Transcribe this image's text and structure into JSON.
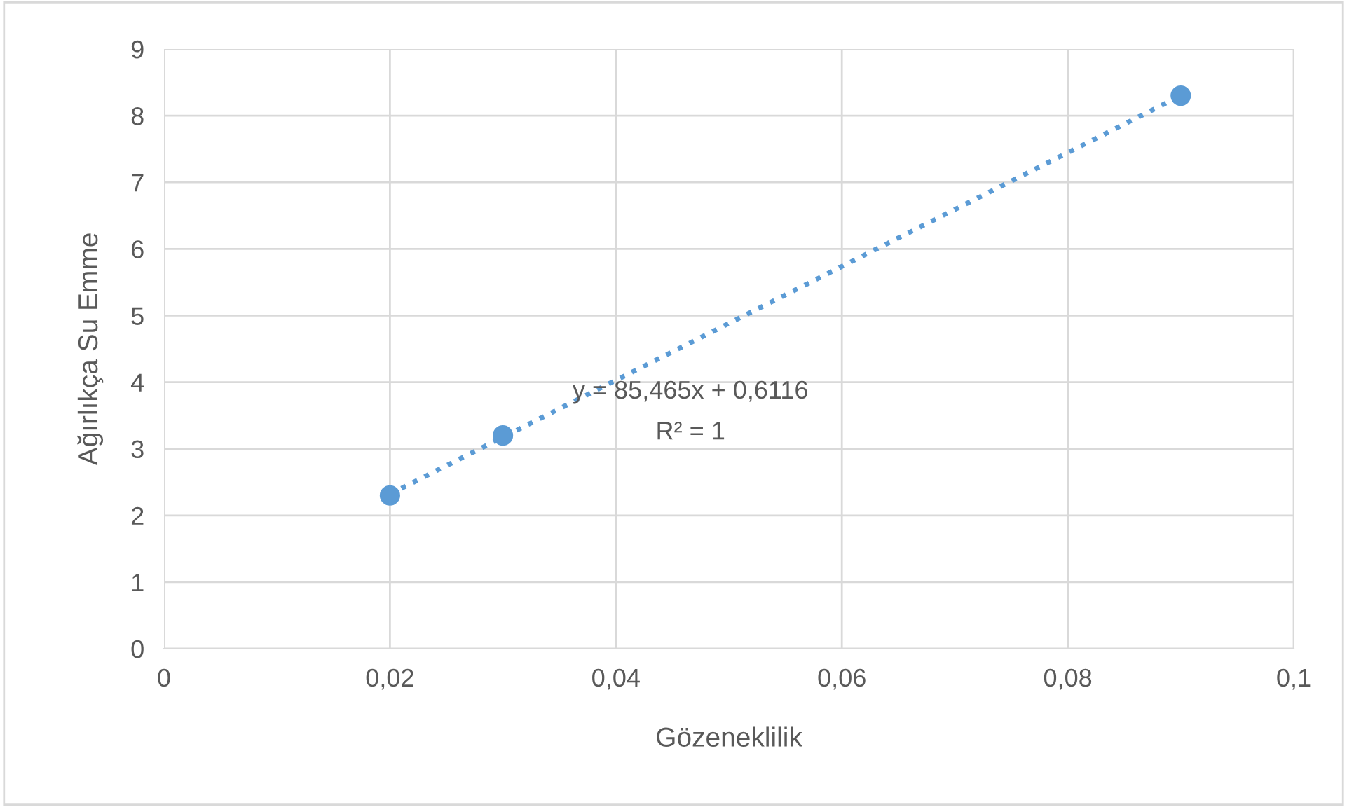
{
  "chart_data": {
    "type": "scatter",
    "xlabel": "Gözeneklilik",
    "ylabel": "Ağırlıkça Su Emme",
    "series": [
      {
        "color": "#5b9bd5",
        "x": [
          0.02,
          0.03,
          0.09
        ],
        "values": [
          2.3,
          3.2,
          8.3
        ],
        "marker": "circle"
      },
      {
        "type": "line",
        "color": "#5b9bd5",
        "x": [
          0.02,
          0.09
        ],
        "values": [
          2.32,
          8.3
        ],
        "line_style": "dotted",
        "marker": "none"
      }
    ],
    "annotations": [
      "y = 85,465x + 0,6116",
      "R² = 1"
    ],
    "xlim": [
      0,
      0.1
    ],
    "ylim": [
      0,
      9
    ],
    "xticks": [
      0,
      {
        "value": 0.02,
        "label": "0,02"
      },
      {
        "value": 0.04,
        "label": "0,04"
      },
      {
        "value": 0.06,
        "label": "0,06"
      },
      {
        "value": 0.08,
        "label": "0,08"
      },
      {
        "value": 0.1,
        "label": "0,1"
      }
    ],
    "yticks": [
      0,
      1,
      2,
      3,
      4,
      5,
      6,
      7,
      8,
      9
    ],
    "grid": true,
    "legend": false
  }
}
